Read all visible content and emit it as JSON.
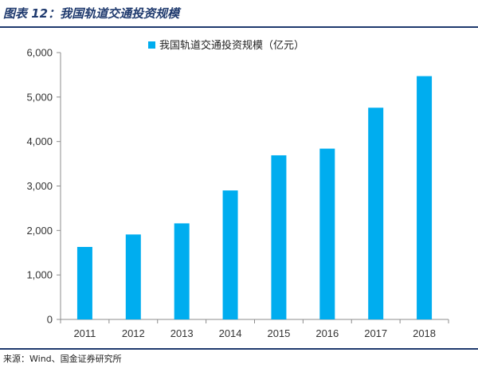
{
  "figure": {
    "title": "图表 12：我国轨道交通投资规模",
    "source": "来源：Wind、国金证券研究所"
  },
  "colors": {
    "bar": "#00ADEF",
    "axis": "#8C8C8C",
    "rule": "#1F3A6E"
  },
  "chart_data": {
    "type": "bar",
    "categories": [
      "2011",
      "2012",
      "2013",
      "2014",
      "2015",
      "2016",
      "2017",
      "2018"
    ],
    "series": [
      {
        "name": "我国轨道交通投资规模（亿元）",
        "values": [
          1630,
          1910,
          2160,
          2900,
          3690,
          3840,
          4760,
          5470
        ]
      }
    ],
    "yticks": [
      "0",
      "1,000",
      "2,000",
      "3,000",
      "4,000",
      "5,000",
      "6,000"
    ],
    "ylim": [
      0,
      6000
    ],
    "grid": false,
    "legend": "top-center",
    "xlabel": "",
    "ylabel": ""
  }
}
